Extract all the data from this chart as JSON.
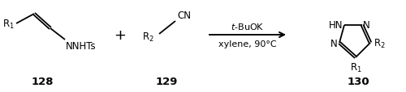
{
  "figsize": [
    5.0,
    1.15
  ],
  "dpi": 100,
  "bg_color": "#ffffff",
  "label_128": "128",
  "label_129": "129",
  "label_130": "130",
  "arrow_above": "$t$-BuOK",
  "arrow_below": "xylene, 90°C",
  "plus_sign": "+",
  "font_size_main": 8.5,
  "font_size_label": 9.5,
  "font_size_bold": 9.5,
  "lw": 1.3
}
